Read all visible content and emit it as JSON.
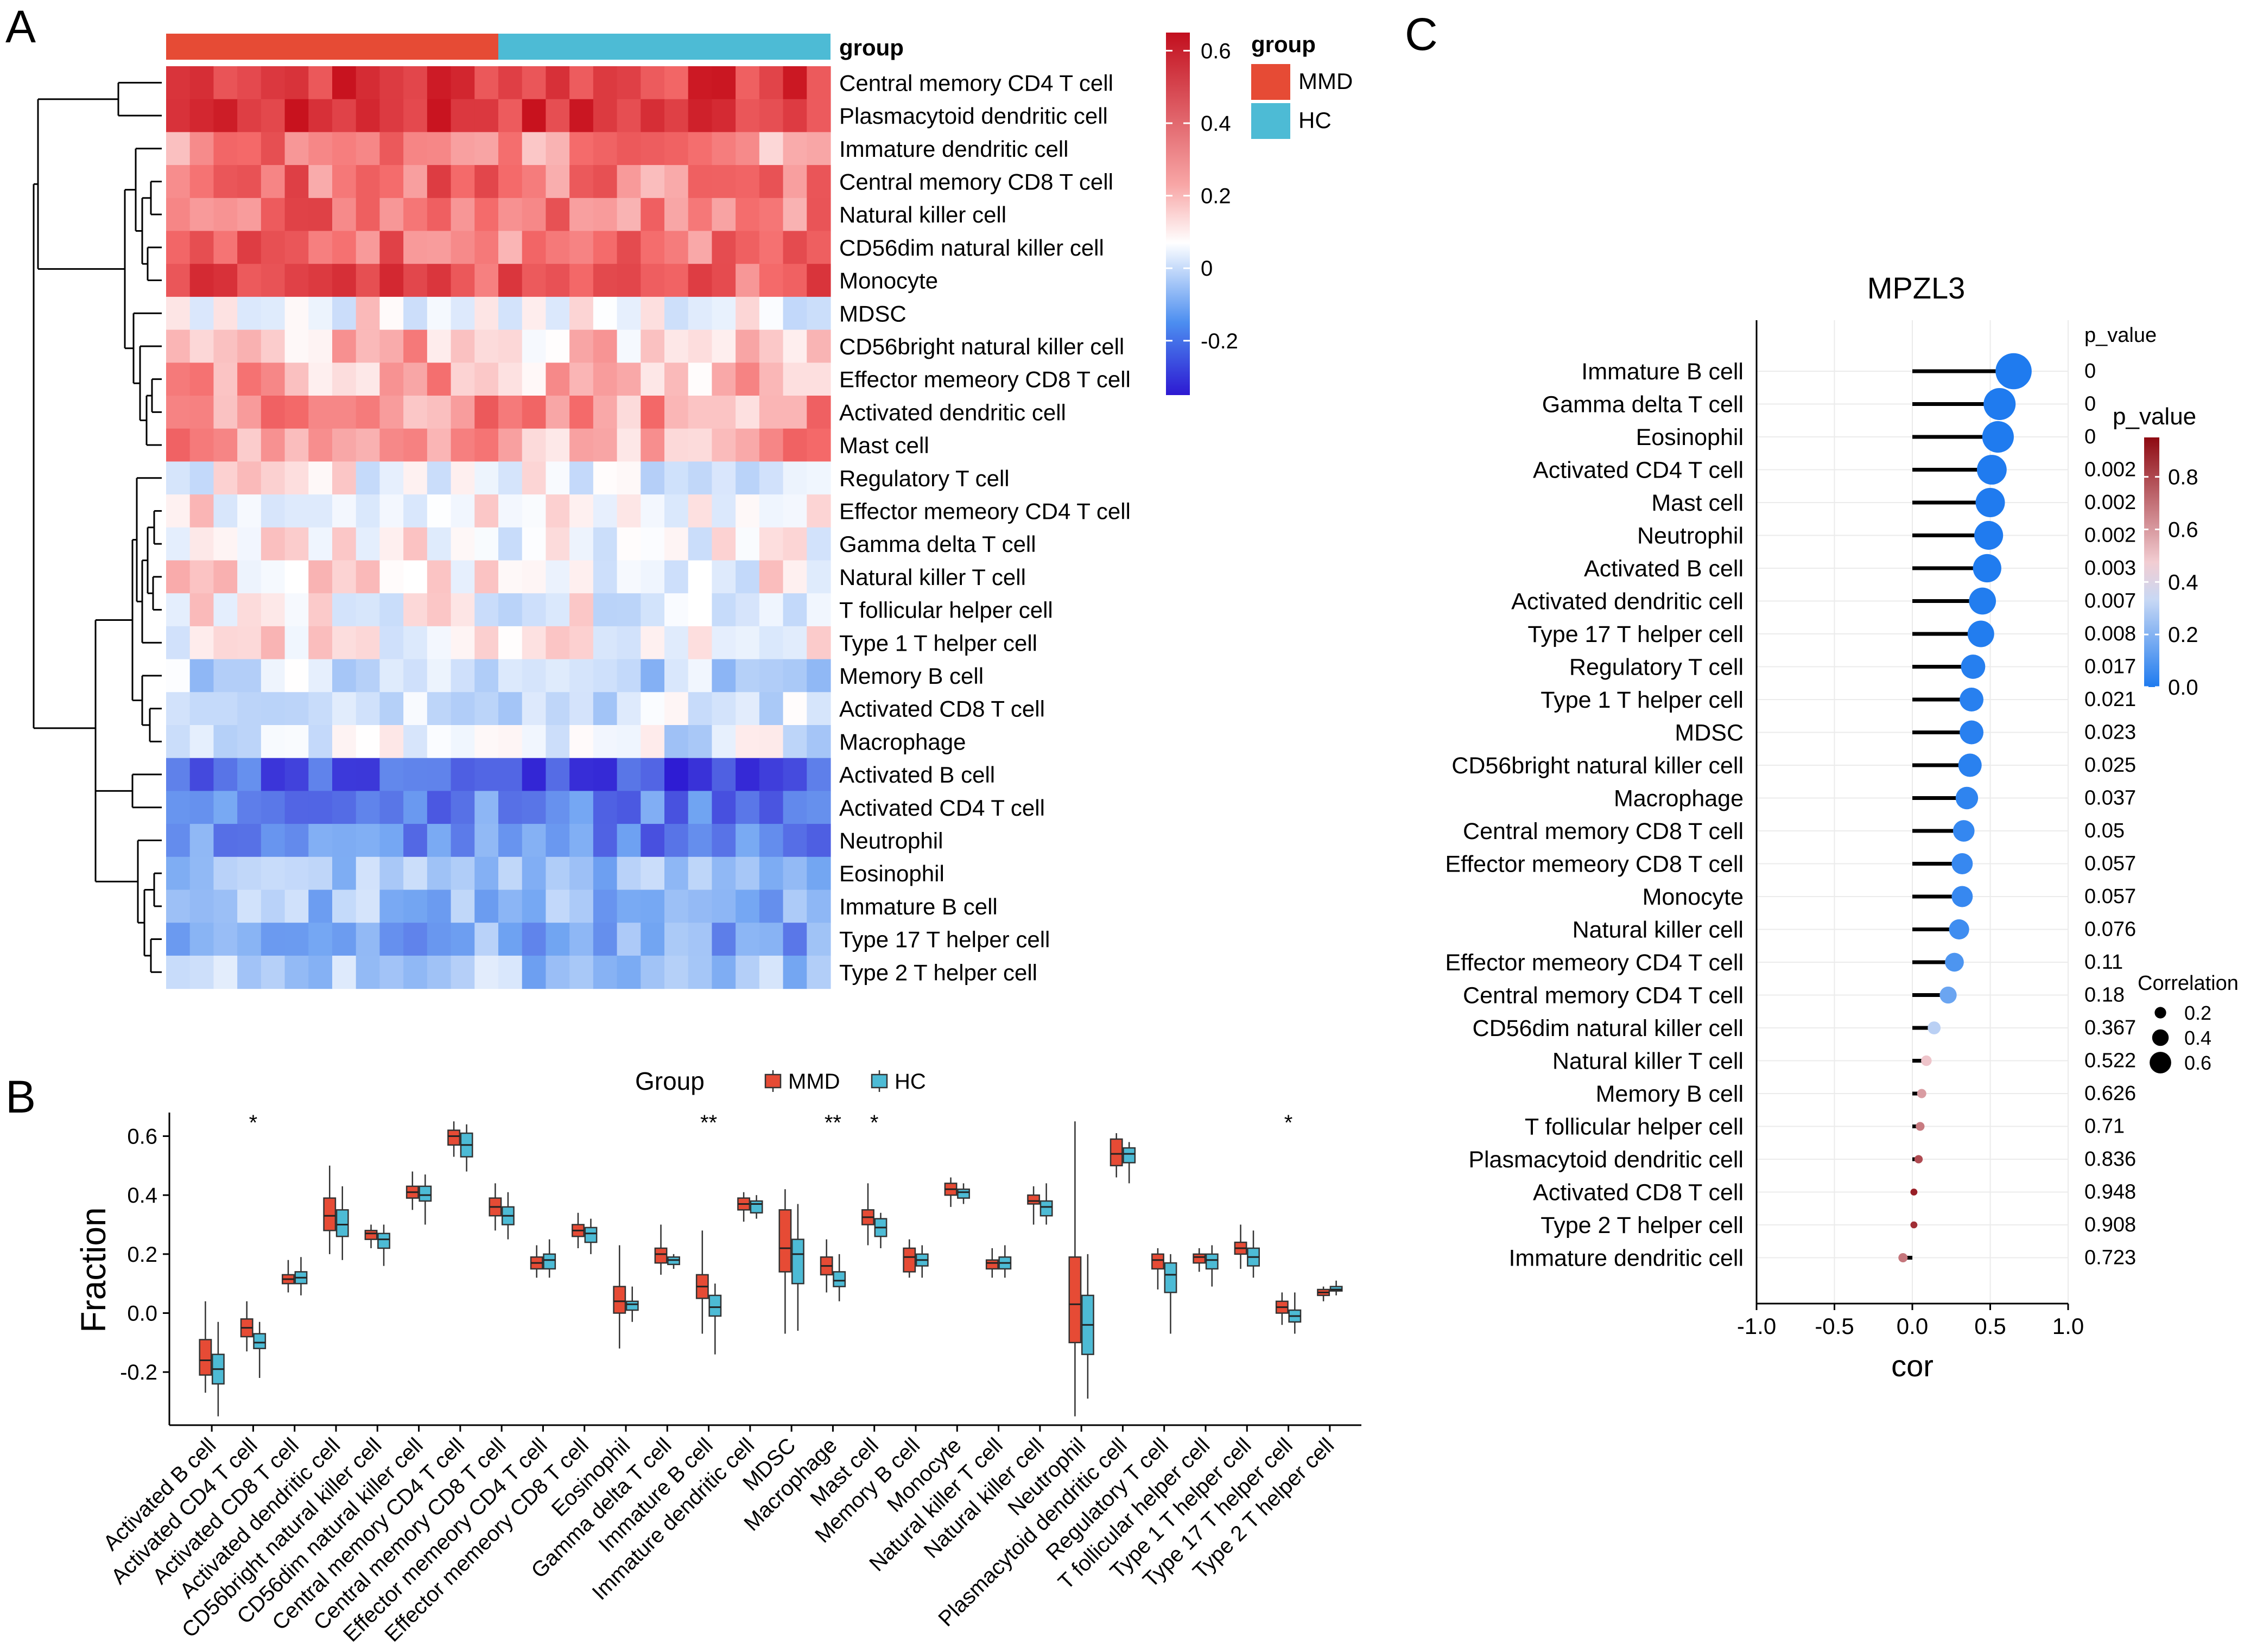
{
  "panels": {
    "A": "A",
    "B": "B",
    "C": "C"
  },
  "heatmap": {
    "row_labels": [
      "Central memory CD4 T cell",
      "Plasmacytoid dendritic cell",
      "Immature dendritic cell",
      "Central memory CD8 T cell",
      "Natural killer cell",
      "CD56dim natural killer cell",
      "Monocyte",
      "MDSC",
      "CD56bright natural killer cell",
      "Effector memeory CD8 T cell",
      "Activated dendritic cell",
      "Mast cell",
      "Regulatory T cell",
      "Effector memeory CD4 T cell",
      "Gamma delta T cell",
      "Natural killer T cell",
      "T follicular helper cell",
      "Type 1 T helper cell",
      "Memory B cell",
      "Activated CD8 T cell",
      "Macrophage",
      "Activated B cell",
      "Activated CD4 T cell",
      "Neutrophil",
      "Eosinophil",
      "Immature  B cell",
      "Type 17 T helper cell",
      "Type 2 T helper cell"
    ],
    "row_base": [
      0.55,
      0.57,
      0.38,
      0.42,
      0.44,
      0.43,
      0.47,
      0.19,
      0.3,
      0.3,
      0.36,
      0.36,
      0.18,
      0.2,
      0.22,
      0.21,
      0.19,
      0.2,
      0.08,
      0.13,
      0.14,
      -0.22,
      -0.13,
      -0.12,
      0.02,
      0.0,
      -0.05,
      0.04
    ],
    "n_mmd": 14,
    "n_hc": 14,
    "group_title": "group",
    "group_legend_title": "group",
    "group_legend": [
      {
        "label": "MMD",
        "color": "#E64B35"
      },
      {
        "label": "HC",
        "color": "#4DBBD5"
      }
    ],
    "colorbar_ticks": [
      "0.6",
      "0.4",
      "0.2",
      "0",
      "-0.2"
    ],
    "colorbar_values": [
      0.6,
      0.4,
      0.2,
      0,
      -0.2
    ],
    "scale": {
      "min": -0.35,
      "max": 0.65,
      "mid": 0.2
    }
  },
  "chart_data": [
    {
      "type": "heatmap",
      "title": "",
      "rows": "heatmap.row_labels",
      "value_range": [
        -0.35,
        0.65
      ],
      "groups": [
        "MMD",
        "HC"
      ]
    },
    {
      "type": "box",
      "legend_title": "Group",
      "legend": [
        {
          "label": "MMD",
          "color": "#E64B35"
        },
        {
          "label": "HC",
          "color": "#4DBBD5"
        }
      ],
      "ylabel": "Fraction",
      "ylim": [
        -0.38,
        0.68
      ],
      "yticks": [
        "-0.2",
        "0.0",
        "0.2",
        "0.4",
        "0.6"
      ],
      "ytick_values": [
        -0.2,
        0,
        0.2,
        0.4,
        0.6
      ],
      "categories": [
        "Activated B cell",
        "Activated CD4 T cell",
        "Activated CD8 T cell",
        "Activated dendritic cell",
        "CD56bright natural killer cell",
        "CD56dim natural killer cell",
        "Central memory CD4 T cell",
        "Central memory CD8 T cell",
        "Effector memeory CD4 T cell",
        "Effector memeory CD8 T cell",
        "Eosinophil",
        "Gamma delta T cell",
        "Immature  B cell",
        "Immature dendritic cell",
        "MDSC",
        "Macrophage",
        "Mast cell",
        "Memory B cell",
        "Monocyte",
        "Natural killer T cell",
        "Natural killer cell",
        "Neutrophil",
        "Plasmacytoid dendritic cell",
        "Regulatory T cell",
        "T follicular helper cell",
        "Type 1 T helper cell",
        "Type 17 T helper cell",
        "Type 2 T helper cell"
      ],
      "significance": [
        "",
        "*",
        "",
        "",
        "",
        "",
        "",
        "",
        "",
        "",
        "",
        "",
        "**",
        "",
        "",
        "**",
        "*",
        "",
        "",
        "",
        "",
        "",
        "",
        "",
        "",
        "",
        "*",
        ""
      ],
      "series": [
        {
          "name": "MMD",
          "stats": [
            [
              -0.27,
              -0.21,
              -0.16,
              -0.09,
              0.04
            ],
            [
              -0.13,
              -0.08,
              -0.05,
              -0.02,
              0.04
            ],
            [
              0.07,
              0.1,
              0.115,
              0.13,
              0.18
            ],
            [
              0.2,
              0.28,
              0.33,
              0.39,
              0.5
            ],
            [
              0.22,
              0.25,
              0.27,
              0.28,
              0.3
            ],
            [
              0.35,
              0.39,
              0.41,
              0.43,
              0.48
            ],
            [
              0.53,
              0.57,
              0.6,
              0.62,
              0.65
            ],
            [
              0.28,
              0.33,
              0.36,
              0.39,
              0.44
            ],
            [
              0.12,
              0.15,
              0.17,
              0.19,
              0.23
            ],
            [
              0.22,
              0.26,
              0.28,
              0.3,
              0.34
            ],
            [
              -0.12,
              0,
              0.04,
              0.09,
              0.23
            ],
            [
              0.13,
              0.17,
              0.2,
              0.22,
              0.3
            ],
            [
              -0.07,
              0.05,
              0.09,
              0.13,
              0.28
            ],
            [
              0.31,
              0.35,
              0.37,
              0.39,
              0.41
            ],
            [
              -0.07,
              0.14,
              0.22,
              0.35,
              0.42
            ],
            [
              0.07,
              0.13,
              0.16,
              0.19,
              0.25
            ],
            [
              0.23,
              0.3,
              0.325,
              0.35,
              0.44
            ],
            [
              0.12,
              0.14,
              0.19,
              0.22,
              0.25
            ],
            [
              0.36,
              0.4,
              0.42,
              0.44,
              0.46
            ],
            [
              0.12,
              0.15,
              0.17,
              0.18,
              0.22
            ],
            [
              0.3,
              0.37,
              0.38,
              0.4,
              0.43
            ],
            [
              -0.35,
              -0.1,
              0.03,
              0.19,
              0.65
            ],
            [
              0.46,
              0.5,
              0.54,
              0.59,
              0.61
            ],
            [
              0.08,
              0.15,
              0.18,
              0.2,
              0.22
            ],
            [
              0.14,
              0.17,
              0.19,
              0.2,
              0.22
            ],
            [
              0.15,
              0.2,
              0.22,
              0.24,
              0.3
            ],
            [
              -0.04,
              0,
              0.02,
              0.04,
              0.07
            ],
            [
              0.04,
              0.06,
              0.07,
              0.08,
              0.09
            ]
          ]
        },
        {
          "name": "HC",
          "stats": [
            [
              -0.35,
              -0.24,
              -0.19,
              -0.14,
              -0.03
            ],
            [
              -0.22,
              -0.12,
              -0.1,
              -0.07,
              -0.03
            ],
            [
              0.06,
              0.1,
              0.12,
              0.14,
              0.19
            ],
            [
              0.18,
              0.26,
              0.3,
              0.35,
              0.43
            ],
            [
              0.16,
              0.22,
              0.25,
              0.27,
              0.3
            ],
            [
              0.3,
              0.38,
              0.4,
              0.43,
              0.47
            ],
            [
              0.48,
              0.53,
              0.57,
              0.61,
              0.64
            ],
            [
              0.25,
              0.3,
              0.33,
              0.36,
              0.41
            ],
            [
              0.12,
              0.15,
              0.18,
              0.2,
              0.25
            ],
            [
              0.2,
              0.24,
              0.27,
              0.29,
              0.32
            ],
            [
              -0.03,
              0.01,
              0.03,
              0.04,
              0.09
            ],
            [
              0.15,
              0.165,
              0.18,
              0.19,
              0.2
            ],
            [
              -0.14,
              -0.01,
              0.02,
              0.06,
              0.1
            ],
            [
              0.32,
              0.34,
              0.37,
              0.38,
              0.4
            ],
            [
              -0.06,
              0.1,
              0.2,
              0.25,
              0.37
            ],
            [
              0.04,
              0.09,
              0.11,
              0.14,
              0.2
            ],
            [
              0.22,
              0.26,
              0.29,
              0.32,
              0.34
            ],
            [
              0.12,
              0.16,
              0.18,
              0.2,
              0.23
            ],
            [
              0.37,
              0.39,
              0.41,
              0.42,
              0.44
            ],
            [
              0.12,
              0.15,
              0.17,
              0.19,
              0.23
            ],
            [
              0.3,
              0.33,
              0.36,
              0.38,
              0.44
            ],
            [
              -0.29,
              -0.14,
              -0.04,
              0.06,
              0.2
            ],
            [
              0.44,
              0.51,
              0.54,
              0.56,
              0.58
            ],
            [
              -0.07,
              0.07,
              0.13,
              0.17,
              0.2
            ],
            [
              0.09,
              0.15,
              0.18,
              0.2,
              0.23
            ],
            [
              0.12,
              0.16,
              0.19,
              0.22,
              0.28
            ],
            [
              -0.07,
              -0.03,
              -0.01,
              0.01,
              0.07
            ],
            [
              0.06,
              0.075,
              0.08,
              0.09,
              0.11
            ]
          ]
        }
      ]
    },
    {
      "type": "lollipop",
      "title": "MPZL3",
      "xlabel": "cor",
      "xlim": [
        -1.0,
        1.0
      ],
      "xticks": [
        "-1.0",
        "-0.5",
        "0.0",
        "0.5",
        "1.0"
      ],
      "xtick_values": [
        -1,
        -0.5,
        0,
        0.5,
        1
      ],
      "p_header": "p_value",
      "colorbar_title": "p_value",
      "colorbar_ticks": [
        "0.8",
        "0.6",
        "0.4",
        "0.2",
        "0.0"
      ],
      "colorbar_values": [
        0.8,
        0.6,
        0.4,
        0.2,
        0
      ],
      "size_legend_title": "Correlation",
      "size_legend": [
        "0.2",
        "0.4",
        "0.6"
      ],
      "size_legend_values": [
        0.2,
        0.4,
        0.6
      ],
      "categories": [
        "Immature  B cell",
        "Gamma delta T cell",
        "Eosinophil",
        "Activated CD4 T cell",
        "Mast cell",
        "Neutrophil",
        "Activated B cell",
        "Activated dendritic cell",
        "Type 17 T helper cell",
        "Regulatory T cell",
        "Type 1 T helper cell",
        "MDSC",
        "CD56bright natural killer cell",
        "Macrophage",
        "Central memory CD8 T cell",
        "Effector memeory CD8 T cell",
        "Monocyte",
        "Natural killer cell",
        "Effector memeory CD4 T cell",
        "Central memory CD4 T cell",
        "CD56dim natural killer cell",
        "Natural killer T cell",
        "Memory B cell",
        "T follicular helper cell",
        "Plasmacytoid dendritic cell",
        "Activated CD8 T cell",
        "Type 2 T helper cell",
        "Immature dendritic cell"
      ],
      "cor": [
        0.65,
        0.56,
        0.55,
        0.51,
        0.5,
        0.49,
        0.48,
        0.45,
        0.44,
        0.39,
        0.38,
        0.38,
        0.37,
        0.35,
        0.33,
        0.32,
        0.32,
        0.3,
        0.27,
        0.23,
        0.14,
        0.09,
        0.06,
        0.05,
        0.04,
        0.01,
        0.01,
        -0.06
      ],
      "p_values": [
        "0",
        "0",
        "0",
        "0.002",
        "0.002",
        "0.002",
        "0.003",
        "0.007",
        "0.008",
        "0.017",
        "0.021",
        "0.023",
        "0.025",
        "0.037",
        "0.05",
        "0.057",
        "0.057",
        "0.076",
        "0.11",
        "0.18",
        "0.367",
        "0.522",
        "0.626",
        "0.71",
        "0.836",
        "0.948",
        "0.908",
        "0.723"
      ],
      "p_numeric": [
        0,
        0,
        0,
        0.002,
        0.002,
        0.002,
        0.003,
        0.007,
        0.008,
        0.017,
        0.021,
        0.023,
        0.025,
        0.037,
        0.05,
        0.057,
        0.057,
        0.076,
        0.11,
        0.18,
        0.367,
        0.522,
        0.626,
        0.71,
        0.836,
        0.948,
        0.908,
        0.723
      ]
    }
  ]
}
